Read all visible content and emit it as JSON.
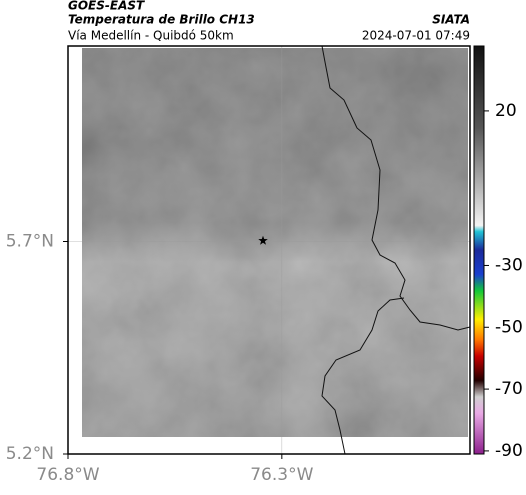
{
  "header": {
    "title": "GOES-EAST",
    "subtitle": "Temperatura de Brillo CH13",
    "region": "Vía Medellín - Quibdó 50km",
    "source": "SIATA",
    "timestamp": "2024-07-01 07:49"
  },
  "map": {
    "xlim": [
      -76.8,
      -75.86
    ],
    "ylim": [
      5.2,
      6.16
    ],
    "xticks": [
      {
        "value": -76.8,
        "label": "76.8°W"
      },
      {
        "value": -76.3,
        "label": "76.3°W"
      }
    ],
    "yticks": [
      {
        "value": 5.7,
        "label": "5.7°N"
      },
      {
        "value": 5.2,
        "label": "5.2°N"
      }
    ],
    "grid": true,
    "marker": {
      "lon": -76.344,
      "lat": 5.702
    }
  },
  "colorbar": {
    "lim": [
      -91,
      41
    ],
    "ticks": [
      20,
      -30,
      -50,
      -70,
      -90
    ]
  }
}
